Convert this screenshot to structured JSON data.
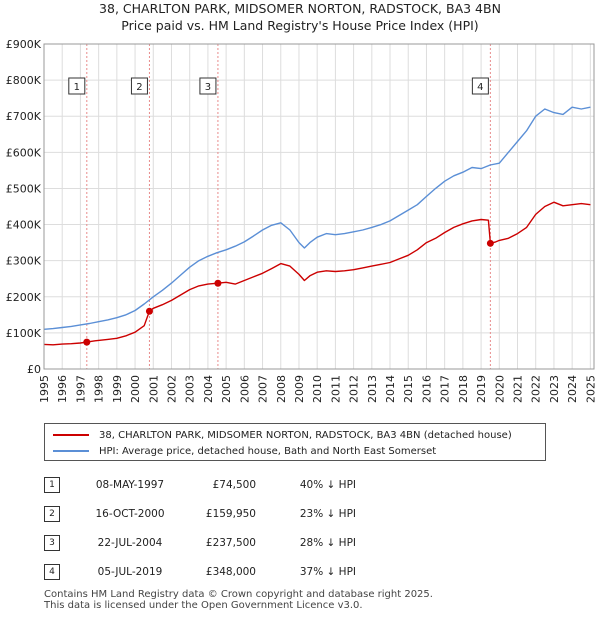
{
  "header": {
    "title": "38, CHARLTON PARK, MIDSOMER NORTON, RADSTOCK, BA3 4BN",
    "subtitle": "Price paid vs. HM Land Registry's House Price Index (HPI)"
  },
  "colors": {
    "property": "#cc0000",
    "hpi": "#5b8fd6",
    "marker_line": "#e88b8b",
    "grid": "#dddddd"
  },
  "chart_data": {
    "type": "line",
    "title": "38, CHARLTON PARK, MIDSOMER NORTON, RADSTOCK, BA3 4BN",
    "subtitle": "Price paid vs. HM Land Registry's House Price Index (HPI)",
    "xlabel": "",
    "ylabel": "",
    "xlim": [
      1995,
      2025.2
    ],
    "ylim": [
      0,
      900000
    ],
    "grid": true,
    "y_ticks": [
      {
        "value": 0,
        "label": "£0"
      },
      {
        "value": 100000,
        "label": "£100K"
      },
      {
        "value": 200000,
        "label": "£200K"
      },
      {
        "value": 300000,
        "label": "£300K"
      },
      {
        "value": 400000,
        "label": "£400K"
      },
      {
        "value": 500000,
        "label": "£500K"
      },
      {
        "value": 600000,
        "label": "£600K"
      },
      {
        "value": 700000,
        "label": "£700K"
      },
      {
        "value": 800000,
        "label": "£800K"
      },
      {
        "value": 900000,
        "label": "£900K"
      }
    ],
    "x_ticks": [
      "1995",
      "1996",
      "1997",
      "1998",
      "1999",
      "2000",
      "2001",
      "2002",
      "2003",
      "2004",
      "2005",
      "2006",
      "2007",
      "2008",
      "2009",
      "2010",
      "2011",
      "2012",
      "2013",
      "2014",
      "2015",
      "2016",
      "2017",
      "2018",
      "2019",
      "2020",
      "2021",
      "2022",
      "2023",
      "2024",
      "2025"
    ],
    "series": [
      {
        "name": "38, CHARLTON PARK, MIDSOMER NORTON, RADSTOCK, BA3 4BN (detached house)",
        "color": "#cc0000",
        "x": [
          1995.0,
          1995.5,
          1996.0,
          1996.5,
          1997.0,
          1997.35,
          1997.8,
          1998.5,
          1999.0,
          1999.5,
          2000.0,
          2000.5,
          2000.79,
          2001.0,
          2001.5,
          2002.0,
          2002.5,
          2003.0,
          2003.5,
          2004.0,
          2004.55,
          2005.0,
          2005.5,
          2006.0,
          2006.5,
          2007.0,
          2007.5,
          2008.0,
          2008.5,
          2009.0,
          2009.3,
          2009.6,
          2010.0,
          2010.5,
          2011.0,
          2011.5,
          2012.0,
          2012.5,
          2013.0,
          2013.5,
          2014.0,
          2014.5,
          2015.0,
          2015.5,
          2016.0,
          2016.5,
          2017.0,
          2017.5,
          2018.0,
          2018.5,
          2019.0,
          2019.4,
          2019.51,
          2019.8,
          2020.0,
          2020.5,
          2021.0,
          2021.5,
          2022.0,
          2022.5,
          2023.0,
          2023.5,
          2024.0,
          2024.5,
          2025.0
        ],
        "values": [
          68000,
          67000,
          69000,
          70000,
          72000,
          74500,
          78000,
          82000,
          85000,
          92000,
          102000,
          120000,
          159950,
          168000,
          178000,
          190000,
          205000,
          220000,
          230000,
          235000,
          237500,
          240000,
          235000,
          245000,
          255000,
          265000,
          278000,
          292000,
          285000,
          262000,
          245000,
          258000,
          268000,
          272000,
          270000,
          272000,
          275000,
          280000,
          285000,
          290000,
          295000,
          305000,
          315000,
          330000,
          350000,
          362000,
          378000,
          392000,
          402000,
          410000,
          414000,
          412000,
          348000,
          352000,
          356000,
          362000,
          375000,
          392000,
          428000,
          450000,
          462000,
          452000,
          455000,
          458000,
          455000
        ]
      },
      {
        "name": "HPI: Average price, detached house, Bath and North East Somerset",
        "color": "#5b8fd6",
        "x": [
          1995.0,
          1995.5,
          1996.0,
          1996.5,
          1997.0,
          1997.5,
          1998.0,
          1998.5,
          1999.0,
          1999.5,
          2000.0,
          2000.5,
          2001.0,
          2001.5,
          2002.0,
          2002.5,
          2003.0,
          2003.5,
          2004.0,
          2004.5,
          2005.0,
          2005.5,
          2006.0,
          2006.5,
          2007.0,
          2007.5,
          2008.0,
          2008.5,
          2009.0,
          2009.3,
          2009.6,
          2010.0,
          2010.5,
          2011.0,
          2011.5,
          2012.0,
          2012.5,
          2013.0,
          2013.5,
          2014.0,
          2014.5,
          2015.0,
          2015.5,
          2016.0,
          2016.5,
          2017.0,
          2017.5,
          2018.0,
          2018.5,
          2019.0,
          2019.5,
          2020.0,
          2020.5,
          2021.0,
          2021.5,
          2022.0,
          2022.5,
          2023.0,
          2023.5,
          2024.0,
          2024.5,
          2025.0
        ],
        "values": [
          110000,
          112000,
          115000,
          118000,
          122000,
          126000,
          131000,
          136000,
          142000,
          150000,
          162000,
          180000,
          200000,
          218000,
          238000,
          260000,
          282000,
          300000,
          312000,
          322000,
          330000,
          340000,
          352000,
          368000,
          385000,
          398000,
          405000,
          385000,
          350000,
          335000,
          350000,
          365000,
          375000,
          372000,
          375000,
          380000,
          385000,
          392000,
          400000,
          410000,
          425000,
          440000,
          455000,
          478000,
          500000,
          520000,
          535000,
          545000,
          558000,
          555000,
          565000,
          570000,
          600000,
          630000,
          660000,
          700000,
          720000,
          710000,
          705000,
          725000,
          720000,
          725000
        ]
      }
    ],
    "markers": [
      {
        "label": "1",
        "x": 1997.35,
        "value": 74500
      },
      {
        "label": "2",
        "x": 2000.79,
        "value": 159950
      },
      {
        "label": "3",
        "x": 2004.55,
        "value": 237500
      },
      {
        "label": "4",
        "x": 2019.51,
        "value": 348000
      }
    ]
  },
  "legend": {
    "property_label": "38, CHARLTON PARK, MIDSOMER NORTON, RADSTOCK, BA3 4BN (detached house)",
    "hpi_label": "HPI: Average price, detached house, Bath and North East Somerset"
  },
  "transactions": [
    {
      "num": "1",
      "date": "08-MAY-1997",
      "price": "£74,500",
      "hpi": "40% ↓ HPI"
    },
    {
      "num": "2",
      "date": "16-OCT-2000",
      "price": "£159,950",
      "hpi": "23% ↓ HPI"
    },
    {
      "num": "3",
      "date": "22-JUL-2004",
      "price": "£237,500",
      "hpi": "28% ↓ HPI"
    },
    {
      "num": "4",
      "date": "05-JUL-2019",
      "price": "£348,000",
      "hpi": "37% ↓ HPI"
    }
  ],
  "footer": {
    "line1": "Contains HM Land Registry data © Crown copyright and database right 2025.",
    "line2": "This data is licensed under the Open Government Licence v3.0."
  }
}
